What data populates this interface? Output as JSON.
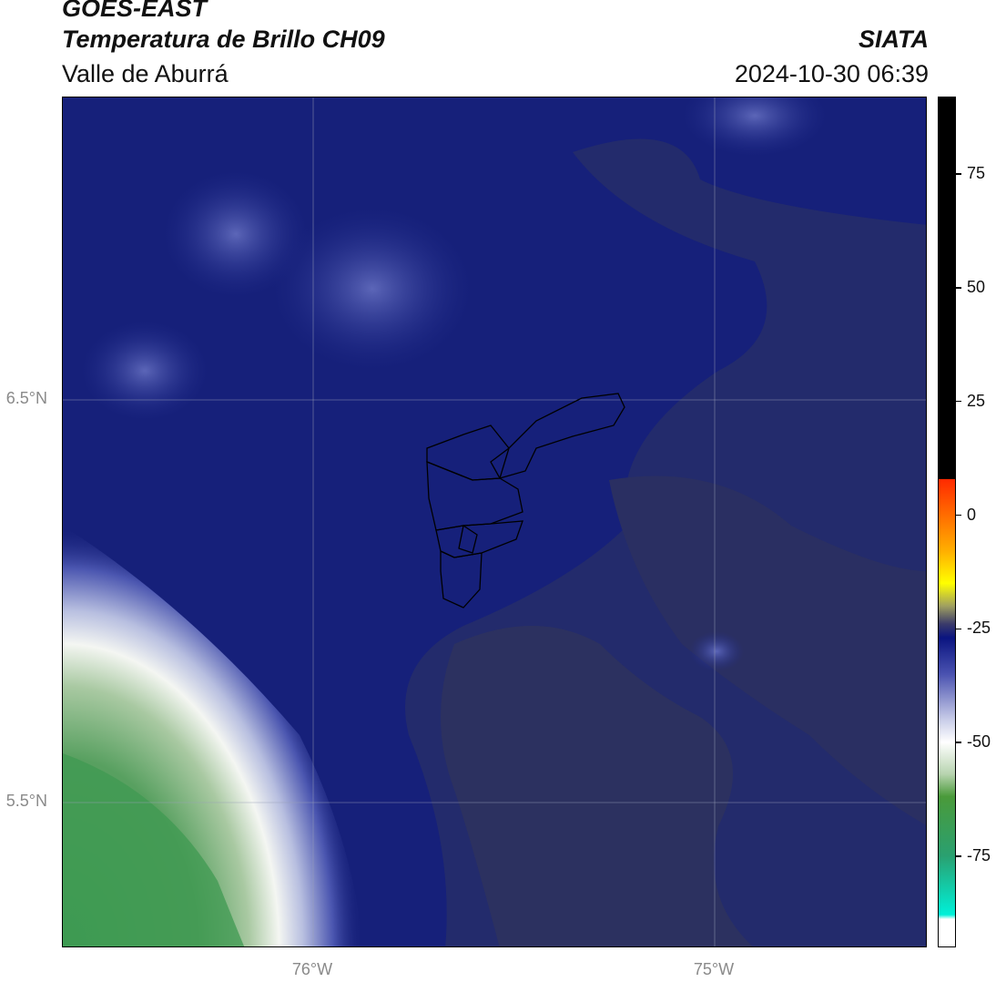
{
  "header": {
    "satellite": "GOES-EAST",
    "product": "Temperatura de Brillo CH09",
    "region": "Valle de Aburrá",
    "brand": "SIATA",
    "datetime": "2024-10-30 06:39"
  },
  "map": {
    "lat_ticks": [
      "6.5°N",
      "5.5°N"
    ],
    "lon_ticks": [
      "76°W",
      "75°W"
    ],
    "colors": {
      "base": "#16207a",
      "gray_region": "#2a2e5e",
      "warm_region": "#d8e2d5",
      "green_region": "#3f9a52"
    }
  },
  "colorbar": {
    "labels": [
      "75",
      "50",
      "25",
      "0",
      "-25",
      "-50",
      "-75"
    ],
    "values": [
      75,
      50,
      25,
      0,
      -25,
      -50,
      -75
    ],
    "range": [
      -95,
      92
    ]
  }
}
